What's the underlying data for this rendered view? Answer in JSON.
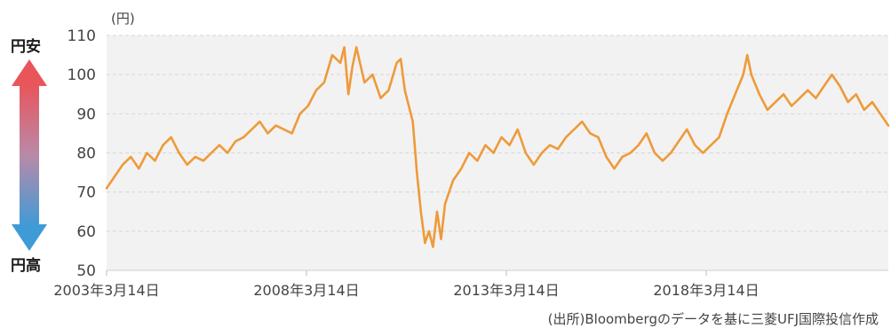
{
  "annotations": {
    "top_arrow_label": "円安",
    "bottom_arrow_label": "円高",
    "source": "(出所)Bloombergのデータを基に三菱UFJ国際投信作成"
  },
  "colors": {
    "line": "#EE9A3A",
    "plot_bg": "#F2F2F2",
    "arrow_top": "#E8555B",
    "arrow_bottom": "#3F9BD6"
  },
  "chart_data": {
    "type": "line",
    "title": "",
    "xlabel": "",
    "ylabel": "(円)",
    "x_ticks": [
      "2003年3月14日",
      "2008年3月14日",
      "2013年3月14日",
      "2018年3月14日"
    ],
    "y_ticks": [
      50,
      60,
      70,
      80,
      90,
      100,
      110
    ],
    "ylim": [
      50,
      110
    ],
    "xlim": [
      2003.2,
      2022.6
    ],
    "grid": "horizontal dashed",
    "legend": "none",
    "series": [
      {
        "values": [
          [
            2003.2,
            71
          ],
          [
            2003.4,
            74
          ],
          [
            2003.6,
            77
          ],
          [
            2003.8,
            79
          ],
          [
            2004.0,
            76
          ],
          [
            2004.2,
            80
          ],
          [
            2004.4,
            78
          ],
          [
            2004.6,
            82
          ],
          [
            2004.8,
            84
          ],
          [
            2005.0,
            80
          ],
          [
            2005.2,
            77
          ],
          [
            2005.4,
            79
          ],
          [
            2005.6,
            78
          ],
          [
            2005.8,
            80
          ],
          [
            2006.0,
            82
          ],
          [
            2006.2,
            80
          ],
          [
            2006.4,
            83
          ],
          [
            2006.6,
            84
          ],
          [
            2006.8,
            86
          ],
          [
            2007.0,
            88
          ],
          [
            2007.2,
            85
          ],
          [
            2007.4,
            87
          ],
          [
            2007.6,
            86
          ],
          [
            2007.8,
            85
          ],
          [
            2008.0,
            90
          ],
          [
            2008.2,
            92
          ],
          [
            2008.4,
            96
          ],
          [
            2008.6,
            98
          ],
          [
            2008.8,
            105
          ],
          [
            2009.0,
            103
          ],
          [
            2009.1,
            107
          ],
          [
            2009.2,
            95
          ],
          [
            2009.3,
            102
          ],
          [
            2009.4,
            107
          ],
          [
            2009.6,
            98
          ],
          [
            2009.8,
            100
          ],
          [
            2010.0,
            94
          ],
          [
            2010.2,
            96
          ],
          [
            2010.4,
            103
          ],
          [
            2010.5,
            104
          ],
          [
            2010.6,
            96
          ],
          [
            2010.8,
            88
          ],
          [
            2010.9,
            75
          ],
          [
            2011.0,
            65
          ],
          [
            2011.1,
            57
          ],
          [
            2011.2,
            60
          ],
          [
            2011.3,
            56
          ],
          [
            2011.4,
            65
          ],
          [
            2011.5,
            58
          ],
          [
            2011.6,
            67
          ],
          [
            2011.8,
            73
          ],
          [
            2012.0,
            76
          ],
          [
            2012.2,
            80
          ],
          [
            2012.4,
            78
          ],
          [
            2012.6,
            82
          ],
          [
            2012.8,
            80
          ],
          [
            2013.0,
            84
          ],
          [
            2013.2,
            82
          ],
          [
            2013.4,
            86
          ],
          [
            2013.6,
            80
          ],
          [
            2013.8,
            77
          ],
          [
            2014.0,
            80
          ],
          [
            2014.2,
            82
          ],
          [
            2014.4,
            81
          ],
          [
            2014.6,
            84
          ],
          [
            2014.8,
            86
          ],
          [
            2015.0,
            88
          ],
          [
            2015.2,
            85
          ],
          [
            2015.4,
            84
          ],
          [
            2015.6,
            79
          ],
          [
            2015.8,
            76
          ],
          [
            2016.0,
            79
          ],
          [
            2016.2,
            80
          ],
          [
            2016.4,
            82
          ],
          [
            2016.6,
            85
          ],
          [
            2016.8,
            80
          ],
          [
            2017.0,
            78
          ],
          [
            2017.2,
            80
          ],
          [
            2017.4,
            83
          ],
          [
            2017.6,
            86
          ],
          [
            2017.8,
            82
          ],
          [
            2018.0,
            80
          ],
          [
            2018.2,
            82
          ],
          [
            2018.4,
            84
          ],
          [
            2018.6,
            90
          ],
          [
            2018.8,
            95
          ],
          [
            2019.0,
            100
          ],
          [
            2019.1,
            105
          ],
          [
            2019.2,
            100
          ],
          [
            2019.4,
            95
          ],
          [
            2019.6,
            91
          ],
          [
            2019.8,
            93
          ],
          [
            2020.0,
            95
          ],
          [
            2020.2,
            92
          ],
          [
            2020.4,
            94
          ],
          [
            2020.6,
            96
          ],
          [
            2020.8,
            94
          ],
          [
            2021.0,
            97
          ],
          [
            2021.2,
            100
          ],
          [
            2021.4,
            97
          ],
          [
            2021.6,
            93
          ],
          [
            2021.8,
            95
          ],
          [
            2022.0,
            91
          ],
          [
            2022.2,
            93
          ],
          [
            2022.4,
            90
          ],
          [
            2022.6,
            87
          ]
        ]
      }
    ]
  }
}
